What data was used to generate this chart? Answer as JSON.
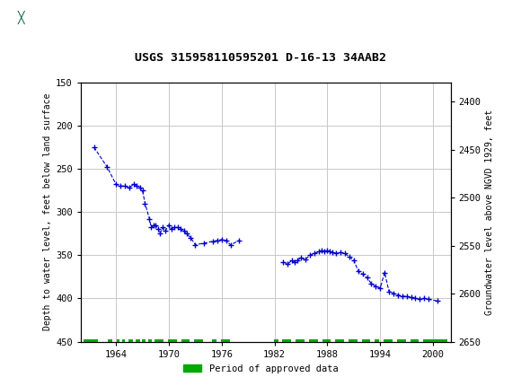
{
  "title": "USGS 315958110595201 D-16-13 34AAB2",
  "ylabel_left": "Depth to water level, feet below land surface",
  "ylabel_right": "Groundwater level above NGVD 1929, feet",
  "ylim_left": [
    150,
    450
  ],
  "ylim_right": [
    2650,
    2380
  ],
  "xlim": [
    1960,
    2002
  ],
  "xticks": [
    1964,
    1970,
    1976,
    1982,
    1988,
    1994,
    2000
  ],
  "yticks_left": [
    150,
    200,
    250,
    300,
    350,
    400,
    450
  ],
  "yticks_right": [
    2650,
    2600,
    2550,
    2500,
    2450,
    2400
  ],
  "yticks_right_labels": [
    "2650",
    "2600",
    "2550",
    "2500",
    "2450",
    "2400"
  ],
  "header_color": "#006633",
  "data_color": "#0000cc",
  "green_color": "#00aa00",
  "background_plot": "#ffffff",
  "grid_color": "#c8c8c8",
  "water_level_data": [
    [
      1961.5,
      225
    ],
    [
      1963.0,
      248
    ],
    [
      1964.0,
      268
    ],
    [
      1964.5,
      270
    ],
    [
      1965.0,
      270
    ],
    [
      1965.5,
      272
    ],
    [
      1966.0,
      268
    ],
    [
      1966.3,
      270
    ],
    [
      1966.7,
      272
    ],
    [
      1967.0,
      275
    ],
    [
      1967.3,
      290
    ],
    [
      1967.8,
      308
    ],
    [
      1968.0,
      318
    ],
    [
      1968.3,
      315
    ],
    [
      1968.5,
      315
    ],
    [
      1968.8,
      320
    ],
    [
      1969.0,
      325
    ],
    [
      1969.3,
      318
    ],
    [
      1969.6,
      322
    ],
    [
      1970.0,
      315
    ],
    [
      1970.3,
      320
    ],
    [
      1970.6,
      318
    ],
    [
      1971.0,
      318
    ],
    [
      1971.3,
      320
    ],
    [
      1971.7,
      322
    ],
    [
      1972.0,
      325
    ],
    [
      1972.5,
      330
    ],
    [
      1973.0,
      338
    ],
    [
      1974.0,
      336
    ],
    [
      1975.0,
      334
    ],
    [
      1975.5,
      333
    ],
    [
      1976.0,
      332
    ],
    [
      1976.5,
      333
    ],
    [
      1977.0,
      338
    ],
    [
      1978.0,
      333
    ],
    [
      1983.0,
      358
    ],
    [
      1983.5,
      360
    ],
    [
      1984.0,
      356
    ],
    [
      1984.3,
      358
    ],
    [
      1984.6,
      356
    ],
    [
      1985.0,
      353
    ],
    [
      1985.5,
      355
    ],
    [
      1986.0,
      350
    ],
    [
      1986.5,
      348
    ],
    [
      1987.0,
      346
    ],
    [
      1987.3,
      345
    ],
    [
      1987.7,
      346
    ],
    [
      1988.0,
      345
    ],
    [
      1988.3,
      346
    ],
    [
      1988.6,
      347
    ],
    [
      1989.0,
      348
    ],
    [
      1989.5,
      347
    ],
    [
      1990.0,
      348
    ],
    [
      1990.5,
      352
    ],
    [
      1991.0,
      356
    ],
    [
      1991.5,
      368
    ],
    [
      1992.0,
      372
    ],
    [
      1992.5,
      376
    ],
    [
      1993.0,
      383
    ],
    [
      1993.5,
      386
    ],
    [
      1994.0,
      388
    ],
    [
      1994.5,
      370
    ],
    [
      1995.0,
      392
    ],
    [
      1995.5,
      394
    ],
    [
      1996.0,
      396
    ],
    [
      1996.5,
      397
    ],
    [
      1997.0,
      398
    ],
    [
      1997.5,
      399
    ],
    [
      1998.0,
      400
    ],
    [
      1998.5,
      401
    ],
    [
      1999.0,
      400
    ],
    [
      1999.5,
      401
    ],
    [
      2000.5,
      403
    ]
  ],
  "approved_periods": [
    [
      1960.3,
      1961.9
    ],
    [
      1963.1,
      1963.6
    ],
    [
      1964.1,
      1964.4
    ],
    [
      1964.7,
      1965.0
    ],
    [
      1965.4,
      1965.9
    ],
    [
      1966.2,
      1966.7
    ],
    [
      1966.9,
      1967.4
    ],
    [
      1967.7,
      1968.1
    ],
    [
      1968.4,
      1969.4
    ],
    [
      1969.9,
      1970.9
    ],
    [
      1971.4,
      1972.4
    ],
    [
      1972.9,
      1973.9
    ],
    [
      1974.9,
      1975.4
    ],
    [
      1975.9,
      1976.9
    ],
    [
      1981.9,
      1982.4
    ],
    [
      1982.9,
      1983.9
    ],
    [
      1984.4,
      1985.4
    ],
    [
      1985.9,
      1986.9
    ],
    [
      1987.4,
      1988.4
    ],
    [
      1988.9,
      1989.9
    ],
    [
      1990.4,
      1991.4
    ],
    [
      1991.9,
      1992.9
    ],
    [
      1993.4,
      1993.9
    ],
    [
      1994.4,
      1995.4
    ],
    [
      1995.9,
      1996.9
    ],
    [
      1997.4,
      1998.4
    ],
    [
      1998.9,
      2001.6
    ]
  ]
}
